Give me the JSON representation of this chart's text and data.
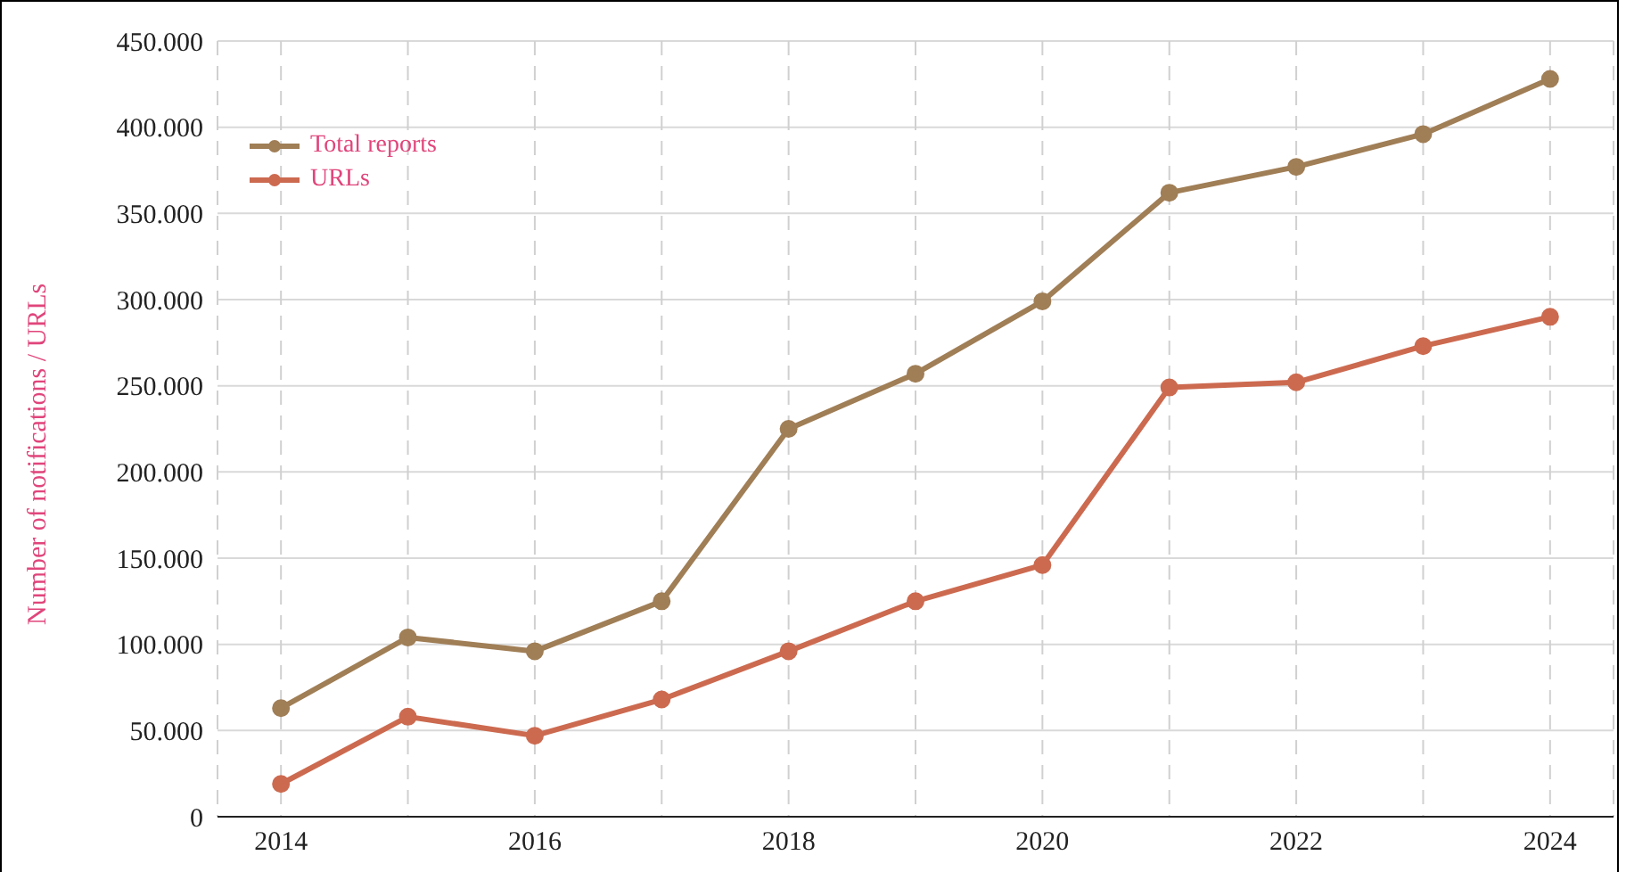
{
  "chart_data": {
    "type": "line",
    "ylabel": "Number of notifications / URLs",
    "x": [
      2014,
      2015,
      2016,
      2017,
      2018,
      2019,
      2020,
      2021,
      2022,
      2023,
      2024
    ],
    "series": [
      {
        "name": "Total reports",
        "color": "#a07e56",
        "values": [
          63000,
          104000,
          96000,
          125000,
          225000,
          257000,
          299000,
          362000,
          377000,
          396000,
          428000
        ]
      },
      {
        "name": "URLs",
        "color": "#cc6a50",
        "values": [
          19000,
          58000,
          47000,
          68000,
          96000,
          125000,
          146000,
          249000,
          252000,
          273000,
          290000
        ]
      }
    ],
    "xlim": [
      2013.5,
      2024.5
    ],
    "xticks": [
      2014,
      {
        "value": 2015,
        "label": null
      },
      2016,
      {
        "value": 2017,
        "label": null
      },
      2018,
      {
        "value": 2019,
        "label": null
      },
      2020,
      {
        "value": 2021,
        "label": null
      },
      2022,
      {
        "value": 2023,
        "label": null
      },
      2024
    ],
    "ylim": [
      0,
      450000
    ],
    "yticks": [
      {
        "value": 0,
        "label": "0"
      },
      {
        "value": 50000,
        "label": "50.000"
      },
      {
        "value": 100000,
        "label": "100.000"
      },
      {
        "value": 150000,
        "label": "150.000"
      },
      {
        "value": 200000,
        "label": "200.000"
      },
      {
        "value": 250000,
        "label": "250.000"
      },
      {
        "value": 300000,
        "label": "300.000"
      },
      {
        "value": 350000,
        "label": "350.000"
      },
      {
        "value": 400000,
        "label": "400.000"
      },
      {
        "value": 450000,
        "label": "450.000"
      }
    ],
    "grid": true,
    "legend": "top left",
    "marker": "circle",
    "line_style": "solid"
  }
}
